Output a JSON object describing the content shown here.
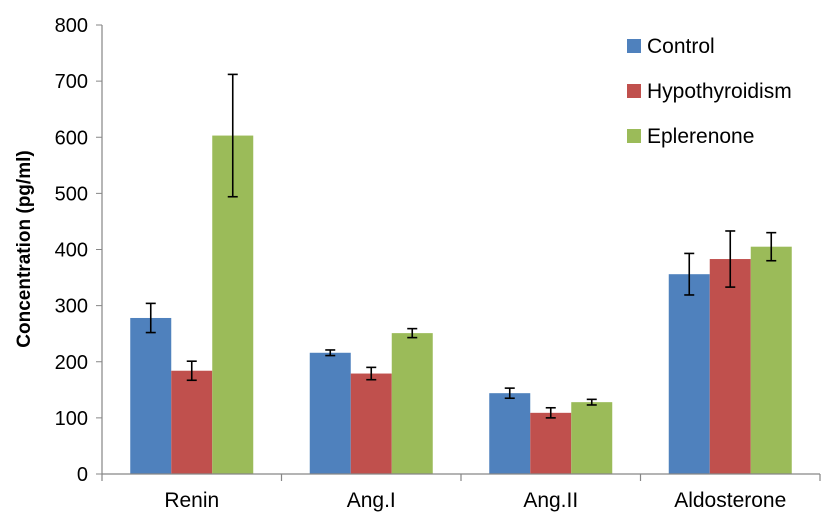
{
  "chart_data": {
    "type": "bar",
    "title": "",
    "xlabel": "",
    "ylabel": "Concentration (pg/ml)",
    "ylim": [
      0,
      800
    ],
    "yticks": [
      0,
      100,
      200,
      300,
      400,
      500,
      600,
      700,
      800
    ],
    "categories": [
      "Renin",
      "Ang.I",
      "Ang.II",
      "Aldosterone"
    ],
    "grid": false,
    "legend_position": "top-right",
    "error_bars": true,
    "series": [
      {
        "name": "Control",
        "color": "#4f81bd",
        "values": [
          278,
          216,
          144,
          356
        ],
        "errors": [
          26,
          5,
          9,
          37
        ]
      },
      {
        "name": "Hypothyroidism",
        "color": "#c0504d",
        "values": [
          184,
          179,
          109,
          383
        ],
        "errors": [
          17,
          11,
          9,
          50
        ]
      },
      {
        "name": "Eplerenone",
        "color": "#9bbb59",
        "values": [
          603,
          251,
          128,
          405
        ],
        "errors": [
          109,
          8,
          5,
          25
        ]
      }
    ]
  }
}
